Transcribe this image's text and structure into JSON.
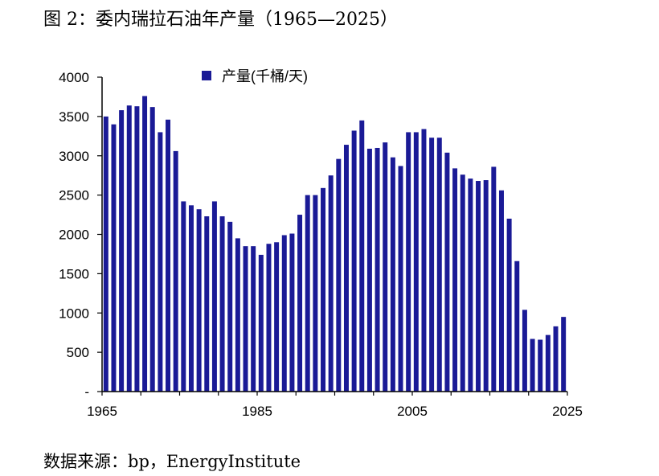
{
  "figure": {
    "title": "图 2：委内瑞拉石油年产量（1965—2025）",
    "source": "数据来源：bp，EnergyInstitute"
  },
  "chart_data": {
    "type": "bar",
    "series": [
      {
        "name": "产量(千桶/天)",
        "color": "#1a1a96",
        "x": [
          1965,
          1966,
          1967,
          1968,
          1969,
          1970,
          1971,
          1972,
          1973,
          1974,
          1975,
          1976,
          1977,
          1978,
          1979,
          1980,
          1981,
          1982,
          1983,
          1984,
          1985,
          1986,
          1987,
          1988,
          1989,
          1990,
          1991,
          1992,
          1993,
          1994,
          1995,
          1996,
          1997,
          1998,
          1999,
          2000,
          2001,
          2002,
          2003,
          2004,
          2005,
          2006,
          2007,
          2008,
          2009,
          2010,
          2011,
          2012,
          2013,
          2014,
          2015,
          2016,
          2017,
          2018,
          2019,
          2020,
          2021,
          2022,
          2023,
          2024
        ],
        "values": [
          3500,
          3400,
          3580,
          3640,
          3630,
          3760,
          3620,
          3300,
          3460,
          3060,
          2420,
          2370,
          2320,
          2230,
          2420,
          2230,
          2160,
          1950,
          1850,
          1850,
          1740,
          1880,
          1900,
          1990,
          2010,
          2250,
          2500,
          2500,
          2590,
          2750,
          2960,
          3140,
          3320,
          3450,
          3090,
          3100,
          3170,
          2980,
          2870,
          3300,
          3300,
          3340,
          3230,
          3230,
          3040,
          2840,
          2760,
          2710,
          2680,
          2690,
          2860,
          2560,
          2200,
          1660,
          1040,
          670,
          660,
          720,
          830,
          950
        ]
      }
    ],
    "x_ticks": [
      "1965",
      "1985",
      "2005",
      "2025"
    ],
    "y_ticks": [
      "-",
      "500",
      "1000",
      "1500",
      "2000",
      "2500",
      "3000",
      "3500",
      "4000"
    ],
    "ylim": [
      0,
      4000
    ],
    "grid": false,
    "legend_position": "top-center"
  }
}
